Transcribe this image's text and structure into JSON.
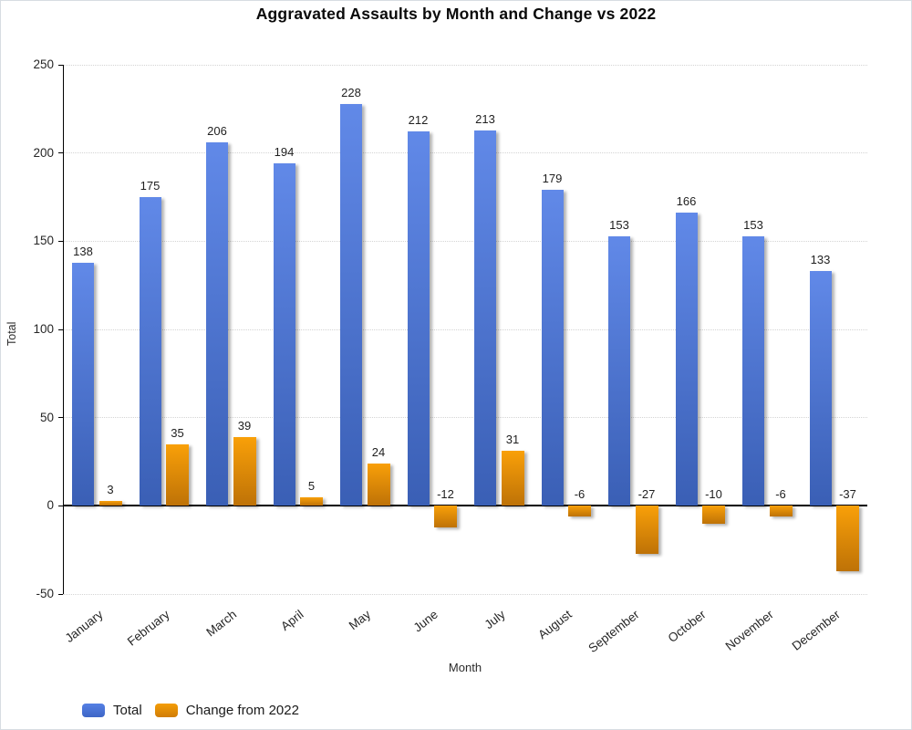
{
  "chart_data": {
    "type": "bar",
    "title": "Aggravated Assaults by Month and Change vs 2022",
    "xlabel": "Month",
    "ylabel": "Total",
    "categories": [
      "January",
      "February",
      "March",
      "April",
      "May",
      "June",
      "July",
      "August",
      "September",
      "October",
      "November",
      "December"
    ],
    "series": [
      {
        "name": "Total",
        "color_key": "blue",
        "values": [
          138,
          175,
          206,
          194,
          228,
          212,
          213,
          179,
          153,
          166,
          153,
          133
        ]
      },
      {
        "name": "Change from 2022",
        "color_key": "orange",
        "values": [
          3,
          35,
          39,
          5,
          24,
          -12,
          31,
          -6,
          -27,
          -10,
          -6,
          -37
        ]
      }
    ],
    "ylim": [
      -50,
      250
    ],
    "ytick_step": 50,
    "yticks": [
      250,
      200,
      150,
      100,
      50,
      0,
      -50
    ],
    "grid": true,
    "data_labels": true,
    "legend_position": "bottom-left"
  },
  "colors": {
    "blue_top": "#6189E8",
    "blue_bottom": "#3A5FB5",
    "orange_top": "#F9A008",
    "orange_bottom": "#BE7207",
    "grid": "#d4d4d4",
    "axis": "#000000",
    "text": "#262626"
  }
}
